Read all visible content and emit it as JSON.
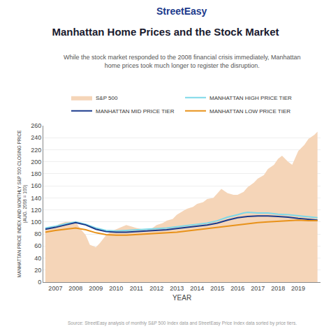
{
  "chart_data": {
    "type": "line",
    "title": "Manhattan Home Prices and the Stock Market",
    "subtitle": "While the stock market responded to the 2008 financial crisis immediately, Manhattan\nhome prices took much longer to register the disruption.",
    "xlabel": "YEAR",
    "ylabel": "MANHATTAN PRICE INDEX AND MONTHLY S&P 500 CLOSING PRICE\n(AUG. 2008 = 100)",
    "annotations": [
      "StreetEasy",
      "Source: StreetEasy analysis of monthly S&P 500 Index data and StreetEasy Price Index data sorted by price tiers."
    ],
    "xlim": [
      2006.4,
      2020.1
    ],
    "xticks": [
      2007,
      2008,
      2009,
      2010,
      2011,
      2012,
      2013,
      2014,
      2015,
      2016,
      2017,
      2018,
      2019
    ],
    "ylim": [
      0,
      260
    ],
    "yticks": [
      0,
      20,
      40,
      60,
      80,
      100,
      120,
      140,
      160,
      180,
      200,
      220,
      240,
      260
    ],
    "grid": "y",
    "legend": "top",
    "series": [
      {
        "name": "S&P 500",
        "type": "area",
        "color": "#f5d5b8",
        "x": [
          2006.5,
          2006.8,
          2007.0,
          2007.2,
          2007.5,
          2007.8,
          2008.0,
          2008.2,
          2008.5,
          2008.7,
          2009.0,
          2009.2,
          2009.5,
          2009.8,
          2010.0,
          2010.3,
          2010.5,
          2010.8,
          2011.0,
          2011.3,
          2011.5,
          2011.8,
          2012.0,
          2012.3,
          2012.5,
          2012.8,
          2013.0,
          2013.3,
          2013.5,
          2013.8,
          2014.0,
          2014.3,
          2014.5,
          2014.8,
          2015.0,
          2015.2,
          2015.5,
          2015.8,
          2016.0,
          2016.3,
          2016.5,
          2016.8,
          2017.0,
          2017.3,
          2017.5,
          2017.8,
          2018.0,
          2018.2,
          2018.5,
          2018.7,
          2019.0,
          2019.3,
          2019.5,
          2019.8,
          2019.95
        ],
        "values": [
          88,
          90,
          93,
          97,
          100,
          100,
          100,
          90,
          78,
          62,
          58,
          65,
          78,
          85,
          88,
          92,
          95,
          92,
          90,
          88,
          86,
          90,
          95,
          98,
          102,
          105,
          112,
          118,
          122,
          125,
          130,
          133,
          138,
          140,
          148,
          155,
          148,
          145,
          145,
          150,
          158,
          165,
          172,
          178,
          188,
          195,
          205,
          210,
          200,
          195,
          218,
          228,
          238,
          245,
          250
        ]
      },
      {
        "name": "MANHATTAN HIGH PRICE TIER",
        "type": "line",
        "color": "#7dd8e8",
        "x": [
          2006.5,
          2007.0,
          2007.5,
          2008.0,
          2008.5,
          2009.0,
          2009.5,
          2010.0,
          2010.5,
          2011.0,
          2011.5,
          2012.0,
          2012.5,
          2013.0,
          2013.5,
          2014.0,
          2014.5,
          2015.0,
          2015.5,
          2016.0,
          2016.3,
          2016.5,
          2017.0,
          2017.5,
          2018.0,
          2018.5,
          2019.0,
          2019.5,
          2019.95
        ],
        "values": [
          90,
          93,
          97,
          100,
          96,
          90,
          86,
          85,
          86,
          87,
          88,
          89,
          90,
          92,
          94,
          96,
          98,
          102,
          108,
          112,
          115,
          116,
          115,
          115,
          113,
          112,
          110,
          108,
          107
        ]
      },
      {
        "name": "MANHATTAN MID PRICE TIER",
        "type": "line",
        "color": "#1b3a8c",
        "x": [
          2006.5,
          2007.0,
          2007.5,
          2008.0,
          2008.5,
          2009.0,
          2009.5,
          2010.0,
          2010.5,
          2011.0,
          2011.5,
          2012.0,
          2012.5,
          2013.0,
          2013.5,
          2014.0,
          2014.5,
          2015.0,
          2015.5,
          2016.0,
          2016.5,
          2017.0,
          2017.5,
          2018.0,
          2018.5,
          2019.0,
          2019.5,
          2019.95
        ],
        "values": [
          88,
          91,
          95,
          99,
          95,
          88,
          84,
          83,
          83,
          84,
          85,
          86,
          87,
          89,
          91,
          93,
          95,
          98,
          103,
          107,
          109,
          110,
          110,
          109,
          108,
          106,
          104,
          103
        ]
      },
      {
        "name": "MANHATTAN LOW PRICE TIER",
        "type": "line",
        "color": "#e8921a",
        "x": [
          2006.5,
          2007.0,
          2007.5,
          2008.0,
          2008.5,
          2009.0,
          2009.5,
          2010.0,
          2010.5,
          2011.0,
          2011.5,
          2012.0,
          2012.5,
          2013.0,
          2013.5,
          2014.0,
          2014.5,
          2015.0,
          2015.5,
          2016.0,
          2016.5,
          2017.0,
          2017.5,
          2018.0,
          2018.5,
          2019.0,
          2019.5,
          2019.95
        ],
        "values": [
          83,
          86,
          88,
          90,
          87,
          82,
          79,
          78,
          78,
          79,
          80,
          81,
          82,
          83,
          85,
          87,
          89,
          91,
          93,
          95,
          97,
          99,
          100,
          101,
          102,
          103,
          102,
          102
        ]
      }
    ]
  }
}
